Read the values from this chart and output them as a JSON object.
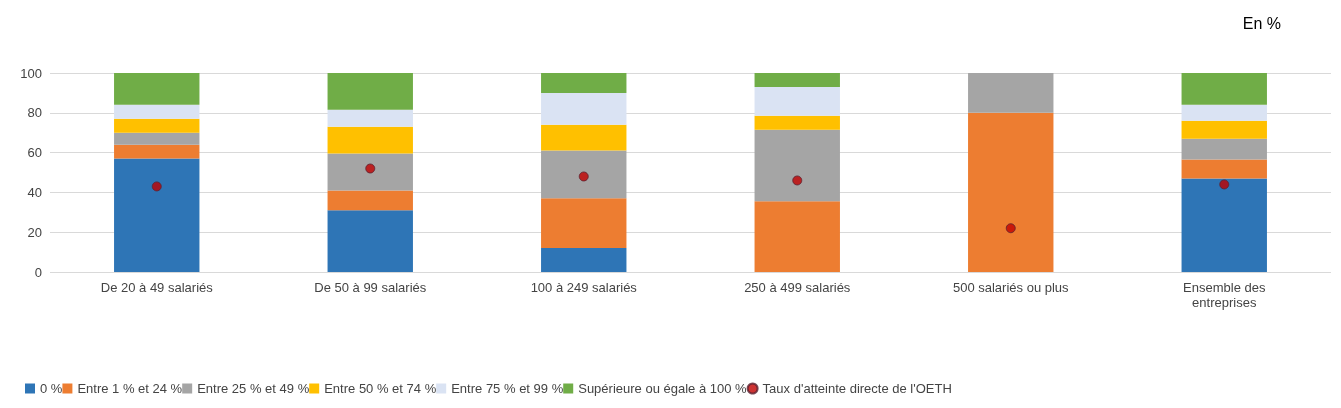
{
  "chart_data": {
    "type": "bar",
    "stacked": true,
    "categories": [
      "De 20 à 49 salariés",
      "De 50 à 99 salariés",
      "100 à 249 salariés",
      "250 à 499 salariés",
      "500 salariés ou plus",
      "Ensemble des\nentreprises"
    ],
    "series": [
      {
        "name": "0 %",
        "color": "#2e75b6",
        "values": [
          57,
          31,
          12,
          0,
          0,
          47
        ]
      },
      {
        "name": "Entre 1 % et 24 %",
        "color": "#ed7d31",
        "values": [
          7,
          10,
          25,
          35.5,
          80,
          9.5
        ]
      },
      {
        "name": "Entre 25 % et 49 %",
        "color": "#a5a5a5",
        "values": [
          6,
          18.5,
          24,
          36,
          20,
          10.5
        ]
      },
      {
        "name": "Entre 50 % et 74 %",
        "color": "#ffc000",
        "values": [
          7,
          13.5,
          13,
          7,
          0,
          9
        ]
      },
      {
        "name": "Entre 75 % et 99 %",
        "color": "#dae3f3",
        "values": [
          7,
          8.5,
          16,
          14.5,
          0,
          8
        ]
      },
      {
        "name": "Supérieure ou égale à 100 %",
        "color": "#70ad47",
        "values": [
          16,
          18.5,
          10,
          7,
          0,
          16
        ]
      },
      {
        "name": "Taux d'atteinte directe de l'OETH",
        "type": "scatter",
        "color": "#c00000",
        "x": [
          "De 20 à 49 salariés",
          "De 50 à 99 salariés",
          "100 à 249 salariés",
          "250 à 499 salariés",
          "500 salariés ou plus",
          "Ensemble des\nentreprises"
        ],
        "values": [
          43,
          52,
          48,
          46,
          22,
          44
        ]
      }
    ],
    "ylim": [
      0,
      100
    ],
    "yticks": [
      0,
      20,
      40,
      60,
      80,
      100
    ],
    "grid": "y",
    "legend": "bottom",
    "marker": "circle",
    "annotations": [
      "En %"
    ]
  }
}
